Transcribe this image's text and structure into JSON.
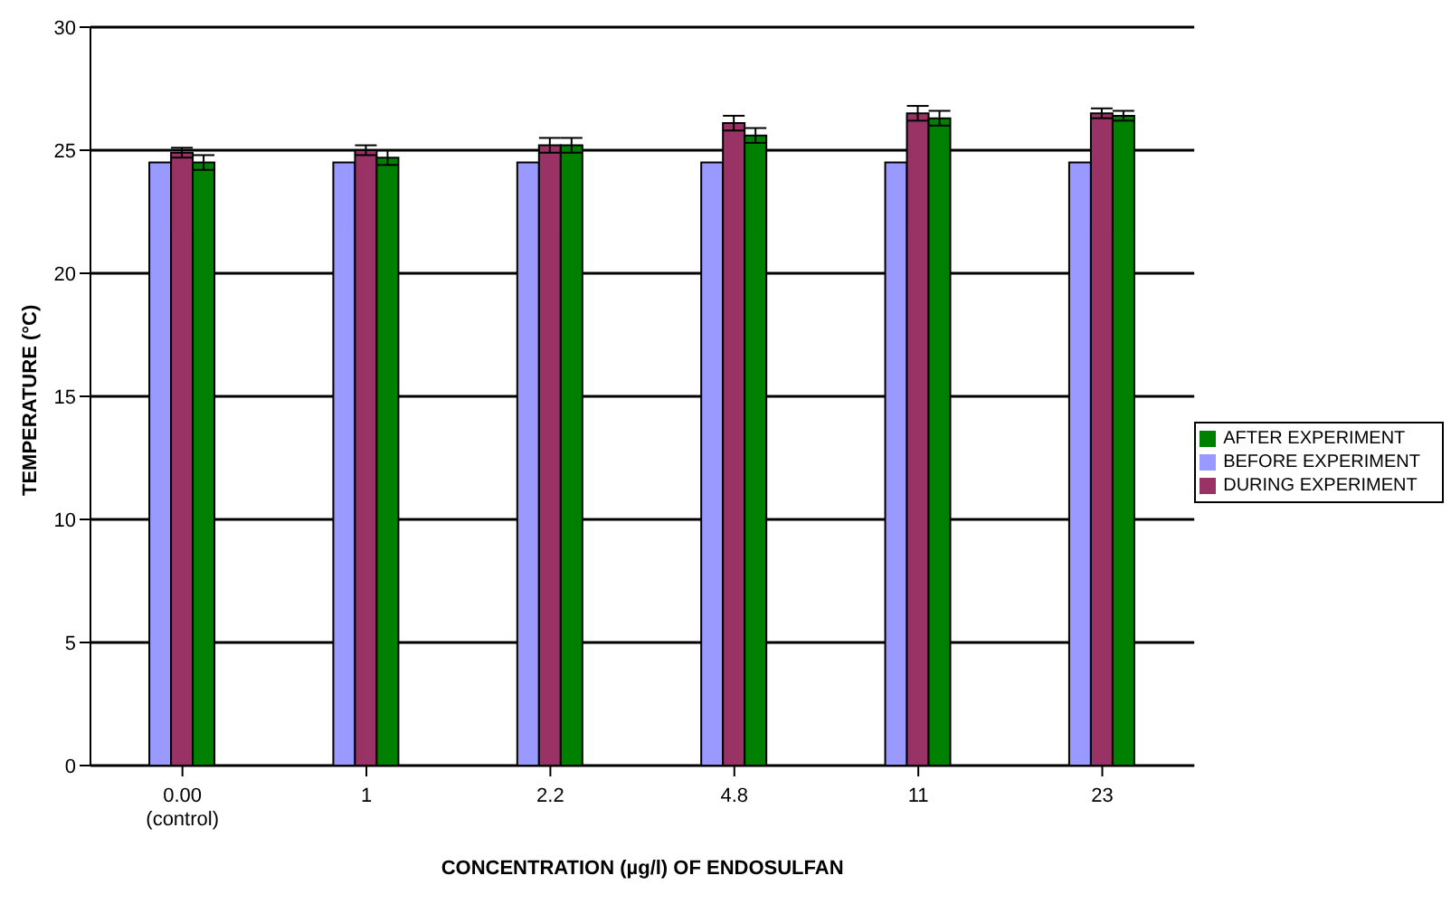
{
  "chart_data": {
    "type": "bar",
    "xlabel": "CONCENTRATION (µg/l) OF ENDOSULFAN",
    "ylabel": "TEMPERATURE (°C)",
    "categories": [
      "0.00\n(control)",
      "1",
      "2.2",
      "4.8",
      "11",
      "23"
    ],
    "series": [
      {
        "name": "BEFORE EXPERIMENT",
        "color": "#9999ff",
        "values": [
          24.5,
          24.5,
          24.5,
          24.5,
          24.5,
          24.5
        ]
      },
      {
        "name": "DURING EXPERIMENT",
        "color": "#993366",
        "values": [
          24.9,
          25.0,
          25.2,
          26.1,
          26.5,
          26.5
        ],
        "errors": [
          0.2,
          0.2,
          0.3,
          0.3,
          0.3,
          0.2
        ]
      },
      {
        "name": "AFTER EXPERIMENT",
        "color": "#008000",
        "values": [
          24.5,
          24.7,
          25.2,
          25.6,
          26.3,
          26.4
        ],
        "errors": [
          0.3,
          0.3,
          0.3,
          0.3,
          0.3,
          0.2
        ]
      }
    ],
    "ylim": [
      0,
      30
    ],
    "yticks": [
      0,
      5,
      10,
      15,
      20,
      25,
      30
    ],
    "grid": "y",
    "legend": "right"
  }
}
